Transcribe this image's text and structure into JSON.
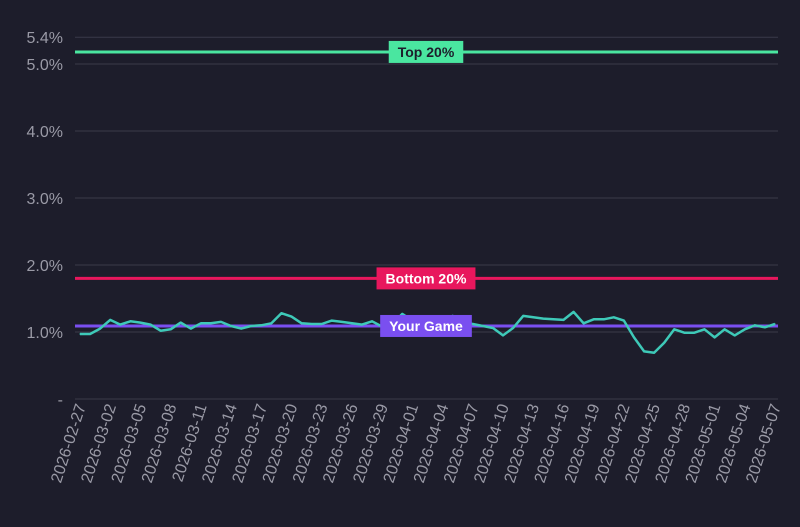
{
  "chart_data": {
    "type": "line",
    "title": "",
    "xlabel": "",
    "ylabel": "",
    "ylim": [
      0,
      5.4
    ],
    "y_ticks": [
      {
        "value": 0,
        "label": "-"
      },
      {
        "value": 1.0,
        "label": "1.0%"
      },
      {
        "value": 2.0,
        "label": "2.0%"
      },
      {
        "value": 3.0,
        "label": "3.0%"
      },
      {
        "value": 4.0,
        "label": "4.0%"
      },
      {
        "value": 5.0,
        "label": "5.0%"
      },
      {
        "value": 5.4,
        "label": "5.4%"
      }
    ],
    "x_tick_labels": [
      "2026-02-27",
      "2026-03-02",
      "2026-03-05",
      "2026-03-08",
      "2026-03-11",
      "2026-03-14",
      "2026-03-17",
      "2026-03-20",
      "2026-03-23",
      "2026-03-26",
      "2026-03-29",
      "2026-04-01",
      "2026-04-04",
      "2026-04-07",
      "2026-04-10",
      "2026-04-13",
      "2026-04-16",
      "2026-04-19",
      "2026-04-22",
      "2026-04-25",
      "2026-04-28",
      "2026-05-01",
      "2026-05-04",
      "2026-05-07"
    ],
    "x_start": "2026-02-27",
    "grid": true,
    "reference_lines": [
      {
        "label": "Top 20%",
        "value": 5.18,
        "color": "#4ae6a0",
        "text_color": "#1d1d2b"
      },
      {
        "label": "Bottom 20%",
        "value": 1.8,
        "color": "#e8175d",
        "text_color": "#ffffff"
      },
      {
        "label": "Your Game",
        "value": 1.09,
        "color": "#7a4ff0",
        "text_color": "#ffffff"
      }
    ],
    "series": [
      {
        "color": "#3ec9b8",
        "values": [
          0.97,
          0.97,
          1.05,
          1.18,
          1.11,
          1.16,
          1.14,
          1.11,
          1.02,
          1.04,
          1.14,
          1.05,
          1.13,
          1.13,
          1.15,
          1.09,
          1.05,
          1.09,
          1.1,
          1.13,
          1.28,
          1.23,
          1.13,
          1.12,
          1.12,
          1.17,
          1.15,
          1.13,
          1.11,
          1.16,
          1.08,
          1.12,
          1.27,
          1.17,
          1.04,
          1.08,
          1.12,
          1.24,
          1.14,
          1.12,
          1.09,
          1.06,
          0.95,
          1.06,
          1.24,
          1.22,
          1.2,
          1.19,
          1.18,
          1.3,
          1.13,
          1.19,
          1.19,
          1.22,
          1.17,
          0.92,
          0.71,
          0.69,
          0.84,
          1.04,
          0.99,
          0.99,
          1.04,
          0.92,
          1.04,
          0.95,
          1.04,
          1.1,
          1.07,
          1.12
        ]
      }
    ]
  }
}
